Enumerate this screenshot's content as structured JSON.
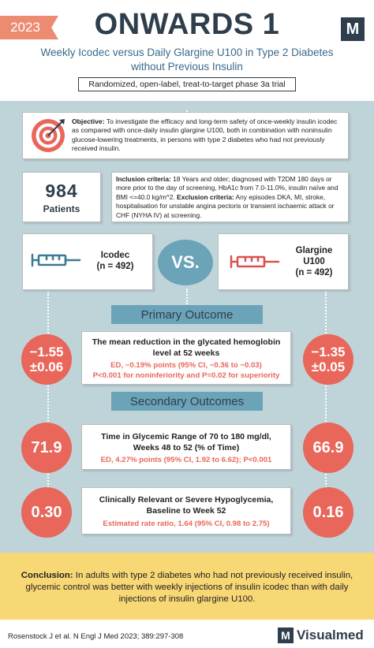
{
  "header": {
    "year": "2023",
    "title": "ONWARDS 1",
    "logo_letter": "M",
    "subtitle_line1": "Weekly Icodec versus Daily Glargine U100 in Type 2 Diabetes",
    "subtitle_line2": "without Previous Insulin",
    "design": "Randomized, open-label, treat-to-target phase 3a trial"
  },
  "objective": {
    "label": "Objective:",
    "text": "To investigate the efficacy and long-term safety of once-weekly insulin icodec as compared with once-daily insulin glargine U100, both in combination with noninsulin glucose-lowering treatments, in persons with type 2 diabetes who had not previously received insulin.",
    "icon": "target-icon"
  },
  "patients": {
    "count": "984",
    "label": "Patients"
  },
  "criteria": {
    "inclusion_label": "Inclusion criteria:",
    "inclusion_text": "18 Years and older; diagnosed with T2DM 180 days or more prior to the day of screening, HbA1c from 7.0-11.0%, insulin naïve and BMI <=40.0 kg/m^2.",
    "exclusion_label": "Exclusion criteria:",
    "exclusion_text": "Any episodes DKA, MI, stroke, hospitalisation for unstable angina pectoris or transient ischaemic attack or CHF (NYHA IV) at screening."
  },
  "arms": {
    "icodec_name": "Icodec",
    "icodec_n": "(n = 492)",
    "icodec_color": "#3a7a94",
    "vs": "VS.",
    "glargine_name_line1": "Glargine",
    "glargine_name_line2": "U100",
    "glargine_n": "(n = 492)",
    "glargine_color": "#d9534f"
  },
  "primary": {
    "heading": "Primary Outcome",
    "icodec_value_line1": "−1.55",
    "icodec_value_line2": "±0.06",
    "glargine_value_line1": "−1.35",
    "glargine_value_line2": "±0.05",
    "title_line1": "The mean reduction in the glycated hemoglobin",
    "title_line2": "level at 52 weeks",
    "result_line1": "ED, −0.19% points (95% CI, −0.36 to −0.03)",
    "result_line2": "P<0.001 for noninferiority and P=0.02 for superiority"
  },
  "secondary": {
    "heading": "Secondary Outcomes",
    "outcomes": [
      {
        "icodec_value": "71.9",
        "glargine_value": "66.9",
        "title_line1": "Time in Glycemic Range of 70 to 180 mg/dl,",
        "title_line2": "Weeks 48 to 52 (% of Time)",
        "result": "ED, 4.27% points (95% CI, 1.92 to 6.62); P<0.001"
      },
      {
        "icodec_value": "0.30",
        "glargine_value": "0.16",
        "title_line1": "Clinically Relevant or Severe Hypoglycemia,",
        "title_line2": "Baseline to Week 52",
        "result": "Estimated rate ratio, 1.64 (95% CI, 0.98 to 2.75)"
      }
    ]
  },
  "conclusion": {
    "label": "Conclusion:",
    "text": "In adults with type 2 diabetes who had not previously received insulin, glycemic control was better with weekly injections of insulin icodec than with daily injections of insulin glargine U100."
  },
  "footer": {
    "reference": "Rosenstock J et al. N Engl J Med 2023; 389:297-308",
    "brand_letter": "M",
    "brand_name": "Visualmed"
  }
}
